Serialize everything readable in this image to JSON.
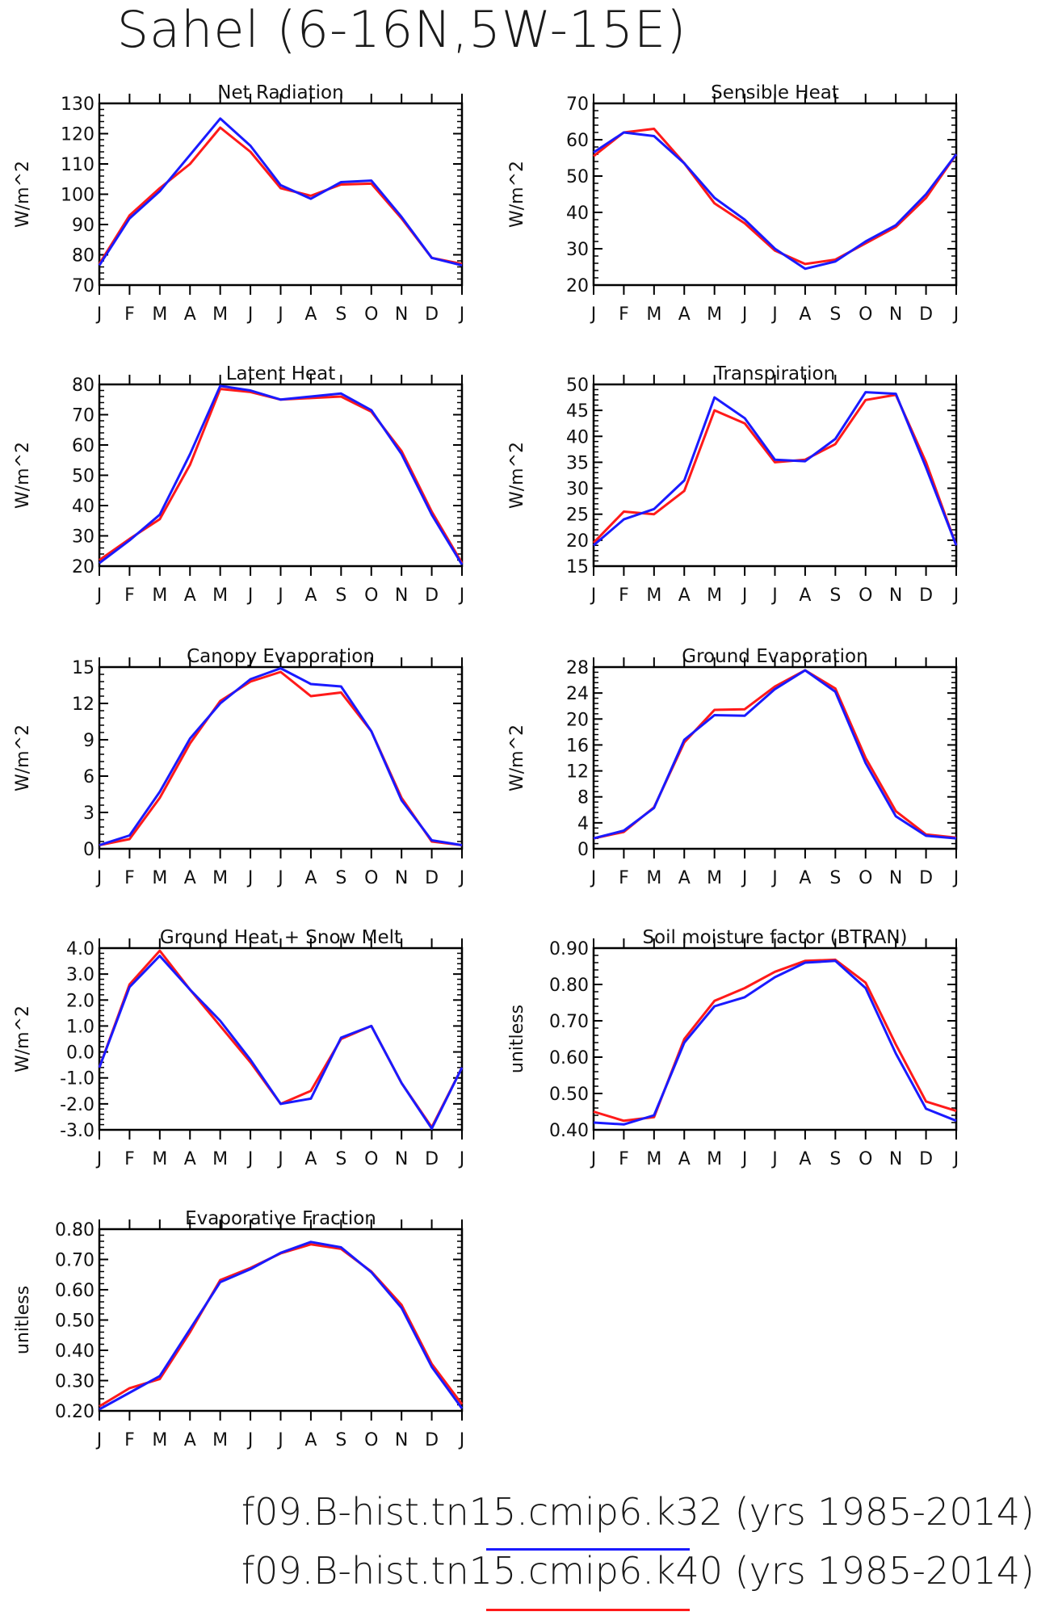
{
  "title": "Sahel (6-16N,5W-15E)",
  "months": [
    "J",
    "F",
    "M",
    "A",
    "M",
    "J",
    "J",
    "A",
    "S",
    "O",
    "N",
    "D",
    "J"
  ],
  "colors": {
    "k32": "#1a1aff",
    "k40": "#ff1a1a"
  },
  "legend": [
    {
      "label": "f09.B-hist.tn15.cmip6.k32 (yrs 1985-2014)",
      "color": "#1a1aff"
    },
    {
      "label": "f09.B-hist.tn15.cmip6.k40 (yrs 1985-2014)",
      "color": "#ff1a1a"
    }
  ],
  "chart_data": [
    {
      "type": "line",
      "title": "Net Radiation",
      "ylabel": "W/m^2",
      "ylim": [
        70,
        130
      ],
      "yticks": [
        "70",
        "80",
        "90",
        "100",
        "110",
        "120",
        "130"
      ],
      "series": [
        {
          "name": "f09.B-hist.tn15.cmip6.k40 (yrs 1985-2014)",
          "color": "#ff1a1a",
          "values": [
            77,
            93,
            102,
            110,
            122,
            114,
            102,
            99.5,
            103.2,
            103.5,
            92,
            79,
            77
          ]
        },
        {
          "name": "f09.B-hist.tn15.cmip6.k32 (yrs 1985-2014)",
          "color": "#1a1aff",
          "values": [
            76.5,
            92,
            101,
            113,
            125,
            116,
            103,
            98.5,
            104,
            104.5,
            92.5,
            79,
            76.5
          ]
        }
      ]
    },
    {
      "type": "line",
      "title": "Sensible Heat",
      "ylabel": "W/m^2",
      "ylim": [
        20,
        70
      ],
      "yticks": [
        "20",
        "30",
        "40",
        "50",
        "60",
        "70"
      ],
      "series": [
        {
          "name": "f09.B-hist.tn15.cmip6.k40 (yrs 1985-2014)",
          "color": "#ff1a1a",
          "values": [
            55.5,
            62,
            63,
            53.5,
            42.5,
            37,
            29.5,
            25.8,
            27,
            31.5,
            36,
            44,
            56
          ]
        },
        {
          "name": "f09.B-hist.tn15.cmip6.k32 (yrs 1985-2014)",
          "color": "#1a1aff",
          "values": [
            56.5,
            62,
            61,
            53.5,
            44,
            38,
            30,
            24.5,
            26.5,
            32,
            36.5,
            45,
            56
          ]
        }
      ]
    },
    {
      "type": "line",
      "title": "Latent Heat",
      "ylabel": "W/m^2",
      "ylim": [
        20,
        80
      ],
      "yticks": [
        "20",
        "30",
        "40",
        "50",
        "60",
        "70",
        "80"
      ],
      "series": [
        {
          "name": "f09.B-hist.tn15.cmip6.k40 (yrs 1985-2014)",
          "color": "#ff1a1a",
          "values": [
            22,
            29,
            35.5,
            53.5,
            78.5,
            77.5,
            75,
            75.5,
            76,
            71,
            58,
            38,
            21
          ]
        },
        {
          "name": "f09.B-hist.tn15.cmip6.k32 (yrs 1985-2014)",
          "color": "#1a1aff",
          "values": [
            21,
            28.5,
            37,
            57,
            79.5,
            78,
            75,
            76,
            77,
            71.5,
            57,
            37,
            20.5
          ]
        }
      ]
    },
    {
      "type": "line",
      "title": "Transpiration",
      "ylabel": "W/m^2",
      "ylim": [
        15,
        50
      ],
      "yticks": [
        "15",
        "20",
        "25",
        "30",
        "35",
        "40",
        "45",
        "50"
      ],
      "series": [
        {
          "name": "f09.B-hist.tn15.cmip6.k40 (yrs 1985-2014)",
          "color": "#ff1a1a",
          "values": [
            19.5,
            25.5,
            25,
            29.5,
            45,
            42.5,
            35,
            35.5,
            38.5,
            47,
            48,
            35,
            19
          ]
        },
        {
          "name": "f09.B-hist.tn15.cmip6.k32 (yrs 1985-2014)",
          "color": "#1a1aff",
          "values": [
            19,
            24,
            26,
            31.5,
            47.5,
            43.5,
            35.5,
            35.2,
            39.5,
            48.5,
            48.2,
            34,
            19
          ]
        }
      ]
    },
    {
      "type": "line",
      "title": "Canopy Evaporation",
      "ylabel": "W/m^2",
      "ylim": [
        0,
        15
      ],
      "yticks": [
        "0",
        "3",
        "6",
        "9",
        "12",
        "15"
      ],
      "series": [
        {
          "name": "f09.B-hist.tn15.cmip6.k40 (yrs 1985-2014)",
          "color": "#ff1a1a",
          "values": [
            0.3,
            0.8,
            4.2,
            8.7,
            12.2,
            13.8,
            14.6,
            12.6,
            12.9,
            9.7,
            4.2,
            0.6,
            0.3
          ]
        },
        {
          "name": "f09.B-hist.tn15.cmip6.k32 (yrs 1985-2014)",
          "color": "#1a1aff",
          "values": [
            0.3,
            1.1,
            4.7,
            9.1,
            12,
            14,
            14.9,
            13.6,
            13.4,
            9.7,
            4,
            0.7,
            0.3
          ]
        }
      ]
    },
    {
      "type": "line",
      "title": "Ground Evaporation",
      "ylabel": "W/m^2",
      "ylim": [
        0,
        28
      ],
      "yticks": [
        "0",
        "4",
        "8",
        "12",
        "16",
        "20",
        "24",
        "28"
      ],
      "series": [
        {
          "name": "f09.B-hist.tn15.cmip6.k40 (yrs 1985-2014)",
          "color": "#ff1a1a",
          "values": [
            1.6,
            2.6,
            6.4,
            16.4,
            21.4,
            21.5,
            25,
            27.5,
            24.7,
            14,
            5.8,
            2.2,
            1.7
          ]
        },
        {
          "name": "f09.B-hist.tn15.cmip6.k32 (yrs 1985-2014)",
          "color": "#1a1aff",
          "values": [
            1.6,
            2.8,
            6.3,
            16.8,
            20.6,
            20.5,
            24.6,
            27.5,
            24.2,
            13.2,
            5,
            2,
            1.6
          ]
        }
      ]
    },
    {
      "type": "line",
      "title": "Ground Heat + Snow Melt",
      "ylabel": "W/m^2",
      "ylim": [
        -3,
        4
      ],
      "yticks": [
        "-3.0",
        "-2.0",
        "-1.0",
        "0.0",
        "1.0",
        "2.0",
        "3.0",
        "4.0"
      ],
      "series": [
        {
          "name": "f09.B-hist.tn15.cmip6.k40 (yrs 1985-2014)",
          "color": "#ff1a1a",
          "values": [
            -0.6,
            2.6,
            3.9,
            2.4,
            1,
            -0.4,
            -2,
            -1.5,
            0.5,
            1,
            -1.2,
            -2.9,
            -0.6
          ]
        },
        {
          "name": "f09.B-hist.tn15.cmip6.k32 (yrs 1985-2014)",
          "color": "#1a1aff",
          "values": [
            -0.6,
            2.5,
            3.7,
            2.4,
            1.2,
            -0.3,
            -2,
            -1.8,
            0.55,
            1,
            -1.2,
            -2.95,
            -0.6
          ]
        }
      ]
    },
    {
      "type": "line",
      "title": "Soil moisture factor (BTRAN)",
      "ylabel": "unitless",
      "ylim": [
        0.4,
        0.9
      ],
      "yticks": [
        "0.40",
        "0.50",
        "0.60",
        "0.70",
        "0.80",
        "0.90"
      ],
      "series": [
        {
          "name": "f09.B-hist.tn15.cmip6.k40 (yrs 1985-2014)",
          "color": "#ff1a1a",
          "values": [
            0.45,
            0.425,
            0.435,
            0.65,
            0.755,
            0.79,
            0.835,
            0.865,
            0.868,
            0.805,
            0.635,
            0.478,
            0.452
          ]
        },
        {
          "name": "f09.B-hist.tn15.cmip6.k32 (yrs 1985-2014)",
          "color": "#1a1aff",
          "values": [
            0.42,
            0.415,
            0.44,
            0.64,
            0.74,
            0.765,
            0.82,
            0.86,
            0.865,
            0.79,
            0.61,
            0.458,
            0.425
          ]
        }
      ]
    },
    {
      "type": "line",
      "title": "Evaporative Fraction",
      "ylabel": "unitless",
      "ylim": [
        0.2,
        0.8
      ],
      "yticks": [
        "0.20",
        "0.30",
        "0.40",
        "0.50",
        "0.60",
        "0.70",
        "0.80"
      ],
      "series": [
        {
          "name": "f09.B-hist.tn15.cmip6.k40 (yrs 1985-2014)",
          "color": "#ff1a1a",
          "values": [
            0.215,
            0.275,
            0.305,
            0.46,
            0.632,
            0.672,
            0.72,
            0.75,
            0.735,
            0.66,
            0.55,
            0.355,
            0.222
          ]
        },
        {
          "name": "f09.B-hist.tn15.cmip6.k32 (yrs 1985-2014)",
          "color": "#1a1aff",
          "values": [
            0.205,
            0.26,
            0.315,
            0.47,
            0.625,
            0.668,
            0.722,
            0.758,
            0.74,
            0.658,
            0.54,
            0.345,
            0.208
          ]
        }
      ]
    }
  ]
}
